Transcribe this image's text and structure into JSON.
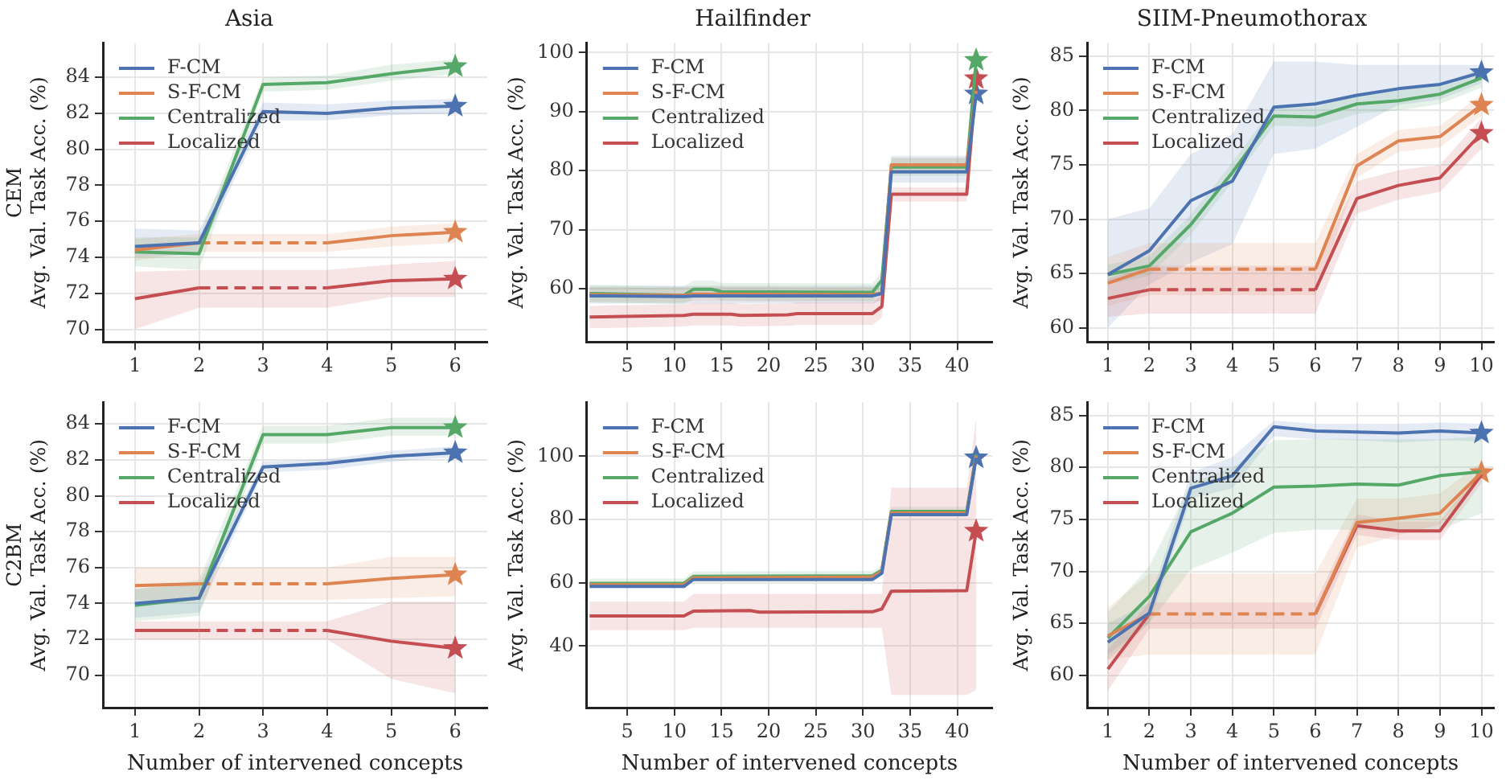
{
  "chart_data": [
    {
      "type": "line",
      "title": "Asia",
      "ylabel": "CEM\nAvg. Val. Task Acc. (%)",
      "x": [
        1,
        2,
        3,
        4,
        5,
        6
      ],
      "xlim": [
        0.5,
        6.5
      ],
      "xticks": [
        1,
        2,
        3,
        4,
        5,
        6
      ],
      "ylim": [
        69.3,
        85.9
      ],
      "yticks": [
        70,
        72,
        74,
        76,
        78,
        80,
        82,
        84
      ],
      "grid": true,
      "legend": "top left",
      "series": [
        {
          "name": "F-CM",
          "color": "#4c72b0",
          "values": [
            74.6,
            74.8,
            82.1,
            82.0,
            82.3,
            82.4
          ],
          "lower": [
            74.0,
            74.2,
            81.6,
            81.6,
            81.9,
            82.0
          ],
          "upper": [
            75.6,
            75.5,
            82.6,
            82.5,
            82.7,
            82.8
          ]
        },
        {
          "name": "S-F-CM",
          "color": "#dd8452",
          "values": [
            74.4,
            74.8,
            null,
            74.8,
            75.2,
            75.4
          ],
          "lower": [
            73.8,
            74.3,
            74.3,
            74.3,
            74.6,
            74.8
          ],
          "upper": [
            75.0,
            75.3,
            75.3,
            75.3,
            75.7,
            75.9
          ]
        },
        {
          "name": "Centralized",
          "color": "#55a868",
          "values": [
            74.3,
            74.2,
            83.6,
            83.7,
            84.2,
            84.6
          ],
          "lower": [
            73.5,
            73.3,
            83.2,
            83.3,
            83.8,
            84.2
          ],
          "upper": [
            75.1,
            75.1,
            84.0,
            84.1,
            84.7,
            85.0
          ]
        },
        {
          "name": "Localized",
          "color": "#c44e52",
          "values": [
            71.7,
            72.3,
            null,
            72.3,
            72.7,
            72.8
          ],
          "lower": [
            70.0,
            71.2,
            71.2,
            71.2,
            71.8,
            71.8
          ],
          "upper": [
            73.2,
            73.3,
            73.3,
            73.3,
            73.6,
            73.8
          ]
        },
        {
          "type": "line",
          "line_style": "dashed",
          "color": "#dd8451",
          "x": [
            2,
            4
          ],
          "values": [
            74.8,
            74.8
          ]
        },
        {
          "type": "line",
          "line_style": "dashed",
          "color": "#c44e51",
          "x": [
            2,
            4
          ],
          "values": [
            72.3,
            72.3
          ]
        },
        {
          "type": "scatter",
          "marker": "star",
          "x": [
            6,
            6,
            6,
            6
          ],
          "values": [
            75.4,
            72.8,
            84.6,
            82.4
          ],
          "colors": [
            "#dd8452",
            "#c44e52",
            "#55a868",
            "#4c72b0"
          ]
        }
      ]
    },
    {
      "type": "line",
      "title": "Hailfinder",
      "ylabel": "Avg. Val. Task Acc. (%)",
      "xlim": [
        0.7,
        43.7
      ],
      "xticks": [
        5,
        10,
        15,
        20,
        25,
        30,
        35,
        40
      ],
      "ylim": [
        51,
        101.6
      ],
      "yticks": [
        60,
        70,
        80,
        90,
        100
      ],
      "grid": true,
      "legend": "top left",
      "series": [
        {
          "name": "F-CM",
          "color": "#4c72b0",
          "x": [
            1,
            11,
            12,
            31,
            32,
            33,
            41,
            42
          ],
          "values": [
            58.8,
            58.7,
            58.8,
            58.8,
            59.2,
            79.8,
            79.8,
            93.0
          ],
          "lower": [
            57.5,
            57.5,
            57.5,
            57.5,
            58.0,
            78.0,
            78.0,
            92.0
          ],
          "upper": [
            60.5,
            60.5,
            60.5,
            60.5,
            61.0,
            82.5,
            82.5,
            94.0
          ]
        },
        {
          "name": "S-F-CM",
          "color": "#dd8452",
          "x": [
            1,
            11,
            12,
            31,
            32,
            33,
            41,
            42
          ],
          "values": [
            59.0,
            58.9,
            59.1,
            59.0,
            59.3,
            81.0,
            81.0,
            93.5
          ],
          "lower": [
            57.8,
            57.7,
            57.9,
            57.8,
            58.1,
            79.8,
            79.8,
            92.5
          ],
          "upper": [
            60.3,
            60.2,
            60.4,
            60.3,
            60.6,
            82.2,
            82.2,
            94.5
          ]
        },
        {
          "name": "Centralized",
          "color": "#55a868",
          "x": [
            1,
            11,
            12,
            14,
            15,
            31,
            32,
            33,
            41,
            42
          ],
          "values": [
            59.2,
            58.9,
            59.9,
            59.9,
            59.5,
            59.4,
            61.5,
            80.6,
            80.6,
            98.7
          ],
          "lower": [
            57.7,
            57.4,
            58.4,
            58.4,
            58.0,
            57.9,
            60.0,
            79.1,
            79.1,
            97.2
          ],
          "upper": [
            60.7,
            60.4,
            61.4,
            61.4,
            61.0,
            60.9,
            63.0,
            82.1,
            82.1,
            100.2
          ]
        },
        {
          "name": "Localized",
          "color": "#c44e52",
          "x": [
            1,
            11,
            12,
            16,
            17,
            22,
            23,
            31,
            32,
            33,
            41,
            42
          ],
          "values": [
            55.2,
            55.5,
            55.7,
            55.7,
            55.5,
            55.6,
            55.8,
            55.8,
            57.0,
            76.0,
            76.0,
            95.6
          ],
          "lower": [
            53.3,
            53.6,
            53.8,
            53.8,
            53.6,
            53.7,
            53.9,
            53.9,
            55.1,
            74.8,
            74.8,
            94.4
          ],
          "upper": [
            57.1,
            57.4,
            57.6,
            57.6,
            57.4,
            57.5,
            57.7,
            57.7,
            58.9,
            77.2,
            77.2,
            96.8
          ]
        },
        {
          "type": "scatter",
          "marker": "star",
          "x": [
            42,
            42,
            42
          ],
          "values": [
            98.7,
            95.6,
            93.0
          ],
          "colors": [
            "#55a868",
            "#c44e52",
            "#4c72b0"
          ]
        }
      ]
    },
    {
      "type": "line",
      "title": "SIIM-Pneumothorax",
      "ylabel": "Avg. Val. Task Acc. (%)",
      "x": [
        1,
        2,
        3,
        4,
        5,
        6,
        7,
        8,
        9,
        10
      ],
      "xlim": [
        0.5,
        10.3
      ],
      "xticks": [
        1,
        2,
        3,
        4,
        5,
        6,
        7,
        8,
        9,
        10
      ],
      "ylim": [
        58.7,
        86.2
      ],
      "yticks": [
        60,
        65,
        70,
        75,
        80,
        85
      ],
      "grid": true,
      "legend": "top left",
      "series": [
        {
          "name": "F-CM",
          "color": "#4c72b0",
          "values": [
            64.9,
            67.1,
            71.7,
            73.5,
            80.3,
            80.6,
            81.4,
            82.0,
            82.4,
            83.5
          ],
          "lower": [
            60,
            64,
            66,
            67.7,
            76,
            76.5,
            78.5,
            80.5,
            81,
            82.5
          ],
          "upper": [
            70,
            71,
            76,
            77.8,
            84.5,
            84.5,
            84.2,
            84.2,
            84.2,
            84.2
          ]
        },
        {
          "name": "S-F-CM",
          "color": "#dd8452",
          "values": [
            64.1,
            65.4,
            null,
            null,
            null,
            65.4,
            74.9,
            77.2,
            77.6,
            80.5
          ],
          "lower": [
            62,
            63,
            63,
            63,
            63,
            63,
            73.8,
            76.2,
            76.6,
            79.5
          ],
          "upper": [
            66.5,
            67.8,
            67.8,
            67.8,
            67.8,
            67.8,
            76,
            78.2,
            78.6,
            81.5
          ]
        },
        {
          "name": "Centralized",
          "color": "#55a868",
          "values": [
            64.9,
            65.7,
            69.5,
            74.3,
            79.5,
            79.4,
            80.6,
            80.9,
            81.5,
            83.0
          ],
          "lower": [
            64,
            64.8,
            68.6,
            73.4,
            78.6,
            78.5,
            79.7,
            80,
            80.6,
            82.1
          ],
          "upper": [
            65.8,
            66.6,
            70.4,
            75.2,
            80.4,
            80.3,
            81.5,
            81.8,
            82.4,
            83.9
          ]
        },
        {
          "name": "Localized",
          "color": "#c44e52",
          "values": [
            62.7,
            63.5,
            null,
            null,
            null,
            63.5,
            71.9,
            73.1,
            73.8,
            77.9
          ],
          "lower": [
            61,
            61.3,
            61.3,
            61.3,
            61.3,
            61.3,
            70.5,
            71.8,
            72.5,
            76.5
          ],
          "upper": [
            64.5,
            65.7,
            65.7,
            65.7,
            65.7,
            65.7,
            73.5,
            74.5,
            75,
            79.3
          ]
        },
        {
          "type": "line",
          "line_style": "dashed",
          "color": "#dd8451",
          "x": [
            2,
            6
          ],
          "values": [
            65.4,
            65.4
          ]
        },
        {
          "type": "line",
          "line_style": "dashed",
          "color": "#c44e51",
          "x": [
            2,
            6
          ],
          "values": [
            63.5,
            63.5
          ]
        },
        {
          "type": "scatter",
          "marker": "star",
          "x": [
            10,
            10,
            10
          ],
          "values": [
            77.9,
            80.5,
            83.5
          ],
          "colors": [
            "#c44e52",
            "#dd8452",
            "#4c72b0"
          ]
        }
      ]
    },
    {
      "type": "line",
      "ylabel": "C2BM\nAvg. Val. Task Acc. (%)",
      "xlabel": "Number of intervened concepts",
      "x": [
        1,
        2,
        3,
        4,
        5,
        6
      ],
      "xlim": [
        0.5,
        6.5
      ],
      "xticks": [
        1,
        2,
        3,
        4,
        5,
        6
      ],
      "ylim": [
        68.2,
        85.2
      ],
      "yticks": [
        70,
        72,
        74,
        76,
        78,
        80,
        82,
        84
      ],
      "grid": true,
      "legend": "top left",
      "series": [
        {
          "name": "F-CM",
          "color": "#4c72b0",
          "values": [
            74.0,
            74.3,
            81.6,
            81.8,
            82.2,
            82.4
          ],
          "lower": [
            73.2,
            73.5,
            81.3,
            81.45,
            81.9,
            82.15
          ],
          "upper": [
            74.8,
            75.1,
            81.9,
            82.05,
            82.5,
            82.75
          ]
        },
        {
          "name": "S-F-CM",
          "color": "#dd8452",
          "values": [
            75.0,
            75.1,
            null,
            75.1,
            75.4,
            75.6
          ],
          "lower": [
            74.2,
            74.2,
            74.2,
            74.2,
            74.3,
            74.4
          ],
          "upper": [
            76.0,
            76.0,
            76.0,
            76.0,
            76.6,
            76.6
          ]
        },
        {
          "name": "Centralized",
          "color": "#55a868",
          "values": [
            73.9,
            74.3,
            83.4,
            83.4,
            83.8,
            83.8
          ],
          "lower": [
            73.0,
            73.3,
            82.9,
            82.9,
            83.35,
            83.35
          ],
          "upper": [
            74.8,
            75.3,
            83.9,
            83.9,
            84.35,
            84.35
          ]
        },
        {
          "name": "Localized",
          "color": "#c44e52",
          "values": [
            72.5,
            72.5,
            null,
            72.5,
            71.9,
            71.5
          ],
          "lower": [
            72.0,
            72.0,
            72.0,
            72.0,
            69.8,
            69.0
          ],
          "upper": [
            73.0,
            73.0,
            73.0,
            73.0,
            74.1,
            74.1
          ]
        },
        {
          "type": "line",
          "line_style": "dashed",
          "color": "#dd8451",
          "x": [
            2,
            4
          ],
          "values": [
            75.1,
            75.1
          ]
        },
        {
          "type": "line",
          "line_style": "dashed",
          "color": "#c44e51",
          "x": [
            2,
            4
          ],
          "values": [
            72.5,
            72.5
          ]
        },
        {
          "type": "scatter",
          "marker": "star",
          "x": [
            6,
            6,
            6,
            6
          ],
          "values": [
            75.6,
            71.5,
            83.8,
            82.4
          ],
          "colors": [
            "#dd8452",
            "#c44e52",
            "#55a868",
            "#4c72b0"
          ]
        }
      ]
    },
    {
      "type": "line",
      "ylabel": "Avg. Val. Task Acc. (%)",
      "xlabel": "Number of intervened concepts",
      "xlim": [
        0.7,
        43.7
      ],
      "xticks": [
        5,
        10,
        15,
        20,
        25,
        30,
        35,
        40
      ],
      "ylim": [
        20.5,
        117
      ],
      "yticks": [
        40,
        60,
        80,
        100
      ],
      "grid": true,
      "legend": "top left",
      "series": [
        {
          "name": "F-CM",
          "color": "#4c72b0",
          "x": [
            1,
            11,
            12,
            31,
            32,
            33,
            41,
            42
          ],
          "values": [
            58.8,
            58.8,
            61.0,
            61.0,
            63.0,
            81.5,
            81.5,
            99.5
          ]
        },
        {
          "name": "S-F-CM",
          "color": "#dd8452",
          "x": [
            1,
            11,
            12,
            31,
            32,
            33,
            41,
            42
          ],
          "values": [
            59.3,
            59.3,
            61.5,
            61.8,
            63.5,
            82.0,
            82.0,
            100.0
          ]
        },
        {
          "name": "Centralized",
          "color": "#55a868",
          "x": [
            1,
            11,
            12,
            31,
            32,
            33,
            41,
            42
          ],
          "values": [
            59.8,
            59.8,
            62.0,
            62.2,
            64.0,
            82.5,
            82.5,
            100.5
          ],
          "lower": [
            58.3,
            58.3,
            60.5,
            60.7,
            62.5,
            81.0,
            81.0,
            99.0
          ],
          "upper": [
            61.3,
            61.3,
            63.5,
            63.7,
            65.5,
            84.0,
            84.0,
            102.0
          ]
        },
        {
          "name": "Localized",
          "color": "#c44e52",
          "x": [
            1,
            11,
            12,
            18,
            19,
            31,
            32,
            33,
            41,
            42
          ],
          "values": [
            49.5,
            49.5,
            51.0,
            51.2,
            50.7,
            50.8,
            51.7,
            57.3,
            57.5,
            76.3
          ],
          "lower": [
            45,
            45,
            45.7,
            45.7,
            45.7,
            45.7,
            45.7,
            24.5,
            24.5,
            26
          ],
          "upper": [
            54,
            54,
            56.5,
            56.5,
            56.5,
            56.5,
            56.5,
            90,
            90,
            112
          ]
        },
        {
          "type": "scatter",
          "marker": "star",
          "x": [
            42,
            42
          ],
          "values": [
            76.3,
            99.5
          ],
          "colors": [
            "#c44e52",
            "#4c72b0"
          ]
        }
      ]
    },
    {
      "type": "line",
      "ylabel": "Avg. Val. Task Acc. (%)",
      "xlabel": "Number of intervened concepts",
      "x": [
        1,
        2,
        3,
        4,
        5,
        6,
        7,
        8,
        9,
        10
      ],
      "xlim": [
        0.5,
        10.3
      ],
      "xticks": [
        1,
        2,
        3,
        4,
        5,
        6,
        7,
        8,
        9,
        10
      ],
      "ylim": [
        56.9,
        86.25
      ],
      "yticks": [
        60,
        65,
        70,
        75,
        80,
        85
      ],
      "grid": true,
      "legend": "top left",
      "series": [
        {
          "name": "F-CM",
          "color": "#4c72b0",
          "values": [
            63.2,
            66.0,
            78.0,
            79.2,
            83.9,
            83.5,
            83.4,
            83.3,
            83.5,
            83.3
          ],
          "lower": [
            62,
            65,
            77,
            78,
            83,
            82.7,
            82.6,
            82.4,
            82.6,
            82.5
          ],
          "upper": [
            65,
            67,
            79.5,
            81,
            84.5,
            84.2,
            84.2,
            84.2,
            84.3,
            84.2
          ]
        },
        {
          "name": "S-F-CM",
          "color": "#dd8452",
          "values": [
            63.8,
            65.9,
            null,
            null,
            null,
            65.9,
            74.7,
            75.1,
            75.6,
            79.5
          ],
          "lower": [
            61.5,
            62,
            62,
            62,
            62,
            62,
            72.3,
            73.5,
            74.5,
            79
          ],
          "upper": [
            66.5,
            69.8,
            69.8,
            69.8,
            69.8,
            69.8,
            77,
            77,
            77.5,
            80.5
          ]
        },
        {
          "name": "Centralized",
          "color": "#55a868",
          "values": [
            63.6,
            67.6,
            73.8,
            75.6,
            78.1,
            78.2,
            78.4,
            78.3,
            79.2,
            79.6
          ],
          "lower": [
            61.5,
            65,
            70.2,
            71.8,
            73.7,
            74,
            74,
            74,
            74,
            75.6
          ],
          "upper": [
            66,
            70.5,
            78.5,
            80,
            82.6,
            82.7,
            82.7,
            82.7,
            82.7,
            83
          ]
        },
        {
          "name": "Localized",
          "color": "#c44e52",
          "values": [
            60.6,
            65.9,
            null,
            null,
            null,
            65.9,
            74.4,
            73.9,
            73.9,
            79.3
          ],
          "lower": [
            58.5,
            64.5,
            64.5,
            64.5,
            64.5,
            64.5,
            73.5,
            73,
            73,
            78.5
          ],
          "upper": [
            62.5,
            67,
            67,
            67,
            67,
            67,
            75.5,
            74.8,
            74.8,
            80
          ]
        },
        {
          "type": "line",
          "line_style": "dashed",
          "color": "#dd8451",
          "x": [
            2,
            6
          ],
          "values": [
            65.9,
            65.9
          ]
        },
        {
          "type": "scatter",
          "marker": "star",
          "x": [
            10,
            10
          ],
          "values": [
            83.3,
            79.5
          ],
          "colors": [
            "#4c72b0",
            "#dd8452"
          ]
        }
      ]
    }
  ]
}
